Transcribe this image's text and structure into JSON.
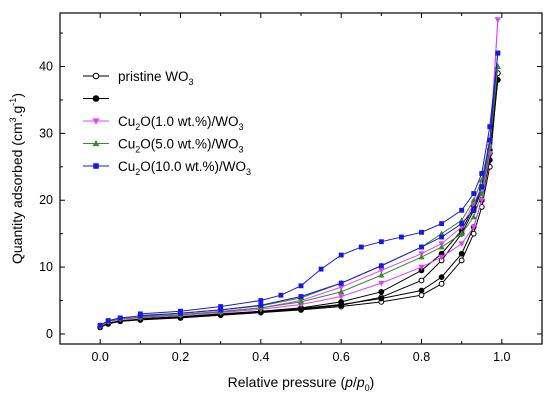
{
  "chart_data": {
    "type": "line",
    "title": "",
    "xlabel": {
      "main": "Relative pressure (",
      "var1": "p",
      "slash": "/",
      "var2": "p",
      "sub": "0",
      "close": ")"
    },
    "ylabel": {
      "main": "Quantity adsorbed (cm",
      "sup1": "3",
      "mid": ".g",
      "sup2": "-1",
      "close": ")"
    },
    "xlim": [
      -0.1,
      1.1
    ],
    "ylim": [
      -1.5,
      48
    ],
    "x_ticks": [
      "0.0",
      "0.2",
      "0.4",
      "0.6",
      "0.8",
      "1.0"
    ],
    "y_ticks": [
      "0",
      "10",
      "20",
      "30",
      "40"
    ],
    "grid": false,
    "legend_position": "top-left",
    "series": [
      {
        "name": {
          "pre": "pristine WO",
          "sub": "3",
          "post": ""
        },
        "color": "#000000",
        "marker": "circle-open",
        "adsorption": {
          "x": [
            0.0,
            0.02,
            0.05,
            0.1,
            0.2,
            0.3,
            0.4,
            0.5,
            0.6,
            0.7,
            0.8,
            0.85,
            0.9,
            0.93,
            0.95,
            0.97,
            0.99
          ],
          "y": [
            1.0,
            1.5,
            1.9,
            2.1,
            2.4,
            2.8,
            3.2,
            3.6,
            4.1,
            4.8,
            5.8,
            7.5,
            11.0,
            15.0,
            19.0,
            25.0,
            39.0
          ]
        },
        "desorption": {
          "x": [
            0.99,
            0.97,
            0.95,
            0.93,
            0.9,
            0.85,
            0.8,
            0.7,
            0.6,
            0.5,
            0.4,
            0.3,
            0.2,
            0.1
          ],
          "y": [
            39.0,
            27.0,
            21.5,
            18.5,
            15.0,
            11.0,
            8.0,
            5.5,
            4.3,
            3.7,
            3.3,
            2.9,
            2.5,
            2.2
          ]
        }
      },
      {
        "name": {
          "pre": "",
          "sub": "",
          "post": ""
        },
        "color": "#000000",
        "marker": "circle-filled",
        "adsorption": {
          "x": [
            0.0,
            0.02,
            0.05,
            0.1,
            0.2,
            0.3,
            0.4,
            0.5,
            0.6,
            0.7,
            0.8,
            0.85,
            0.9,
            0.93,
            0.95,
            0.97,
            0.99
          ],
          "y": [
            1.0,
            1.6,
            2.0,
            2.2,
            2.5,
            2.9,
            3.3,
            3.8,
            4.4,
            5.3,
            6.5,
            8.5,
            12.0,
            16.0,
            20.0,
            26.0,
            38.0
          ]
        },
        "desorption": {
          "x": [
            0.99,
            0.97,
            0.95,
            0.93,
            0.9,
            0.85,
            0.8,
            0.7,
            0.6,
            0.5,
            0.4,
            0.3,
            0.2,
            0.1
          ],
          "y": [
            38.0,
            27.5,
            22.0,
            19.0,
            15.5,
            12.0,
            9.5,
            6.3,
            4.8,
            3.9,
            3.4,
            3.0,
            2.6,
            2.3
          ]
        }
      },
      {
        "name": {
          "pre": "Cu",
          "sub": "2",
          "post": "O(1.0 wt.%)/WO",
          "sub2": "3"
        },
        "color": "#e040fb",
        "marker": "triangle-down",
        "adsorption": {
          "x": [
            0.0,
            0.02,
            0.05,
            0.1,
            0.2,
            0.3,
            0.4,
            0.5,
            0.6,
            0.7,
            0.8,
            0.85,
            0.9,
            0.93,
            0.95,
            0.97,
            0.99
          ],
          "y": [
            1.1,
            1.8,
            2.2,
            2.4,
            2.8,
            3.2,
            3.7,
            4.4,
            5.6,
            7.6,
            10.0,
            11.5,
            13.5,
            16.0,
            20.0,
            27.0,
            47.0
          ]
        },
        "desorption": {
          "x": [
            0.99,
            0.97,
            0.95,
            0.93,
            0.9,
            0.85,
            0.8,
            0.7,
            0.6,
            0.5,
            0.4,
            0.3,
            0.2,
            0.1
          ],
          "y": [
            47.0,
            28.0,
            22.0,
            19.5,
            16.0,
            13.5,
            12.0,
            9.5,
            7.0,
            5.0,
            3.9,
            3.4,
            2.9,
            2.6
          ]
        }
      },
      {
        "name": {
          "pre": "Cu",
          "sub": "2",
          "post": "O(5.0 wt.%)/WO",
          "sub2": "3"
        },
        "color": "#3a8a2e",
        "marker": "triangle-up",
        "adsorption": {
          "x": [
            0.0,
            0.02,
            0.05,
            0.1,
            0.2,
            0.3,
            0.4,
            0.5,
            0.6,
            0.7,
            0.8,
            0.85,
            0.9,
            0.93,
            0.95,
            0.97,
            0.99
          ],
          "y": [
            1.2,
            1.9,
            2.3,
            2.5,
            2.9,
            3.3,
            3.9,
            4.8,
            6.3,
            8.8,
            11.5,
            13.0,
            15.0,
            17.5,
            21.0,
            28.0,
            40.0
          ]
        },
        "desorption": {
          "x": [
            0.99,
            0.97,
            0.95,
            0.93,
            0.9,
            0.85,
            0.8,
            0.7,
            0.6,
            0.5,
            0.4,
            0.3,
            0.2,
            0.1
          ],
          "y": [
            40.0,
            29.0,
            23.0,
            20.0,
            17.0,
            15.0,
            13.0,
            10.2,
            7.6,
            5.4,
            4.2,
            3.6,
            3.1,
            2.8
          ]
        }
      },
      {
        "name": {
          "pre": "Cu",
          "sub": "2",
          "post": "O(10.0 wt.%)/WO",
          "sub2": "3"
        },
        "color": "#1a1adc",
        "marker": "square",
        "adsorption": {
          "x": [
            0.0,
            0.02,
            0.05,
            0.1,
            0.2,
            0.3,
            0.4,
            0.5,
            0.6,
            0.7,
            0.8,
            0.85,
            0.9,
            0.93,
            0.95,
            0.97,
            0.99
          ],
          "y": [
            1.3,
            2.0,
            2.4,
            2.7,
            3.1,
            3.6,
            4.3,
            5.6,
            7.6,
            10.2,
            13.0,
            14.5,
            16.5,
            18.5,
            22.0,
            29.0,
            42.0
          ]
        },
        "desorption": {
          "x": [
            0.99,
            0.97,
            0.95,
            0.93,
            0.9,
            0.85,
            0.8,
            0.75,
            0.7,
            0.65,
            0.6,
            0.55,
            0.5,
            0.45,
            0.4,
            0.3,
            0.2,
            0.1
          ],
          "y": [
            42.0,
            31.0,
            24.0,
            21.0,
            18.5,
            16.5,
            15.2,
            14.5,
            13.8,
            13.0,
            11.8,
            9.7,
            7.2,
            5.8,
            5.0,
            4.1,
            3.4,
            3.0
          ]
        }
      }
    ]
  }
}
